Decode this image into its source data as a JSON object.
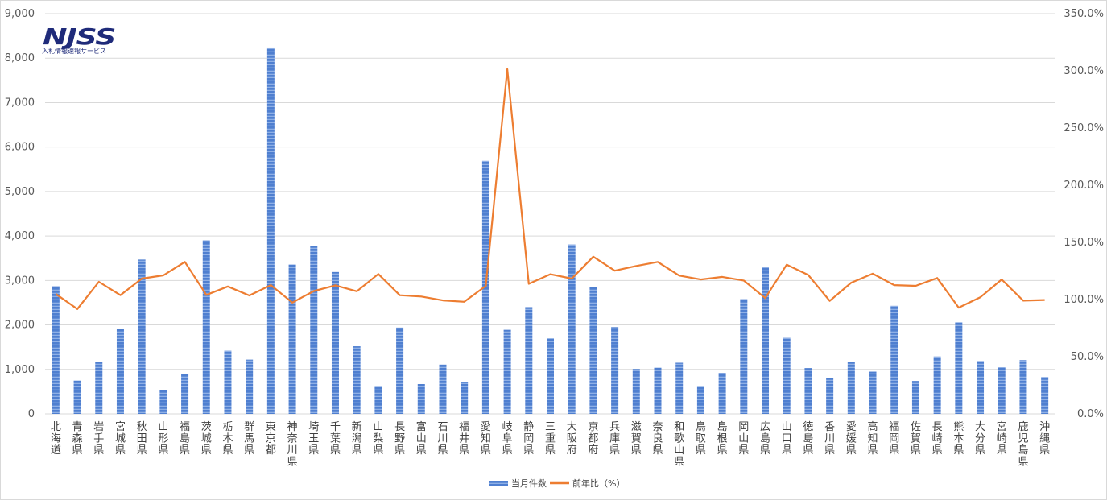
{
  "logo": {
    "mark": "NJSS",
    "tagline": "入札情報速報サービス"
  },
  "colors": {
    "bar": "#4f7fd0",
    "bar_stripe": "#8fb0e6",
    "line": "#ed7d31",
    "grid": "#d9d9d9",
    "logo": "#1f2b7a"
  },
  "chart_data": {
    "type": "bar",
    "categories": [
      "北海道",
      "青森県",
      "岩手県",
      "宮城県",
      "秋田県",
      "山形県",
      "福島県",
      "茨城県",
      "栃木県",
      "群馬県",
      "東京都",
      "神奈川県",
      "埼玉県",
      "千葉県",
      "新潟県",
      "山梨県",
      "長野県",
      "富山県",
      "石川県",
      "福井県",
      "愛知県",
      "岐阜県",
      "静岡県",
      "三重県",
      "大阪府",
      "京都府",
      "兵庫県",
      "滋賀県",
      "奈良県",
      "和歌山県",
      "鳥取県",
      "島根県",
      "岡山県",
      "広島県",
      "山口県",
      "徳島県",
      "香川県",
      "愛媛県",
      "高知県",
      "福岡県",
      "佐賀県",
      "長崎県",
      "熊本県",
      "大分県",
      "宮崎県",
      "鹿児島県",
      "沖縄県"
    ],
    "series": [
      {
        "name": "当月件数",
        "type": "bar",
        "axis": "left",
        "values": [
          2870,
          750,
          1170,
          1910,
          3470,
          530,
          890,
          3900,
          1420,
          1220,
          8240,
          3360,
          3770,
          3190,
          1520,
          610,
          1940,
          670,
          1110,
          720,
          5690,
          1890,
          2400,
          1700,
          3810,
          2850,
          1950,
          1010,
          1040,
          1150,
          610,
          920,
          2580,
          3300,
          1710,
          1030,
          800,
          1170,
          950,
          2430,
          740,
          1290,
          2060,
          1190,
          1050,
          1210,
          830
        ]
      },
      {
        "name": "前年比（%）",
        "type": "line",
        "axis": "right",
        "values": [
          104.8,
          91.7,
          115.5,
          103.8,
          118.3,
          121.1,
          132.9,
          104.0,
          111.4,
          103.5,
          112.6,
          97.3,
          107.4,
          112.4,
          107.2,
          122.3,
          103.7,
          102.6,
          99.2,
          98.0,
          111.9,
          301.5,
          113.7,
          122.1,
          118.3,
          137.5,
          125.2,
          129.4,
          132.9,
          120.9,
          117.5,
          119.8,
          116.6,
          101.3,
          130.5,
          121.5,
          98.8,
          114.7,
          122.6,
          112.6,
          112.0,
          118.8,
          92.9,
          101.9,
          117.5,
          99.0,
          99.6
        ]
      }
    ],
    "y_left": {
      "min": 0,
      "max": 9000,
      "step": 1000
    },
    "y_right": {
      "min": 0,
      "max": 350,
      "step": 50
    },
    "y_left_ticks": [
      "0",
      "1,000",
      "2,000",
      "3,000",
      "4,000",
      "5,000",
      "6,000",
      "7,000",
      "8,000",
      "9,000"
    ],
    "y_right_ticks": [
      "0.0%",
      "50.0%",
      "100.0%",
      "150.0%",
      "200.0%",
      "250.0%",
      "300.0%",
      "350.0%"
    ],
    "grid": true,
    "legend_position": "bottom",
    "legend": [
      "当月件数",
      "前年比（%）"
    ]
  }
}
